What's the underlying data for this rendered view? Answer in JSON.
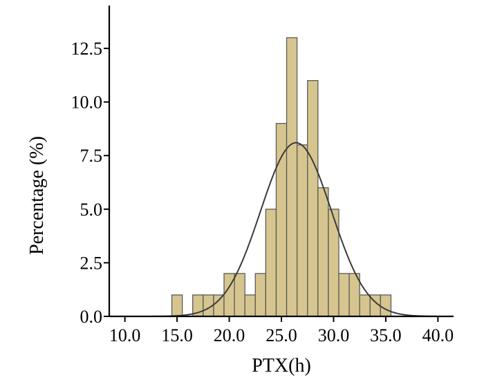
{
  "chart_data": {
    "type": "bar",
    "subtype": "histogram-with-normal-curve",
    "title": "",
    "xlabel": "PTX(h)",
    "ylabel": "Percentage (%)",
    "xlim": [
      8.5,
      41.5
    ],
    "ylim": [
      0,
      14.5
    ],
    "x_ticks": [
      10.0,
      15.0,
      20.0,
      25.0,
      30.0,
      35.0,
      40.0
    ],
    "x_tick_labels": [
      "10.0",
      "15.0",
      "20.0",
      "25.0",
      "30.0",
      "35.0",
      "40.0"
    ],
    "y_ticks": [
      0.0,
      2.5,
      5.0,
      7.5,
      10.0,
      12.5
    ],
    "y_tick_labels": [
      "0.0",
      "2.5",
      "5.0",
      "7.5",
      "10.0",
      "12.5"
    ],
    "bin_width": 1.0,
    "bins": [
      {
        "x0": 14.5,
        "x1": 15.5,
        "value": 1
      },
      {
        "x0": 16.5,
        "x1": 17.5,
        "value": 1
      },
      {
        "x0": 17.5,
        "x1": 18.5,
        "value": 1
      },
      {
        "x0": 18.5,
        "x1": 19.5,
        "value": 1
      },
      {
        "x0": 19.5,
        "x1": 20.5,
        "value": 2
      },
      {
        "x0": 20.5,
        "x1": 21.5,
        "value": 2
      },
      {
        "x0": 21.5,
        "x1": 22.5,
        "value": 1
      },
      {
        "x0": 22.5,
        "x1": 23.5,
        "value": 2
      },
      {
        "x0": 23.5,
        "x1": 24.5,
        "value": 5
      },
      {
        "x0": 24.5,
        "x1": 25.5,
        "value": 9
      },
      {
        "x0": 25.5,
        "x1": 26.5,
        "value": 13
      },
      {
        "x0": 26.5,
        "x1": 27.5,
        "value": 8
      },
      {
        "x0": 27.5,
        "x1": 28.5,
        "value": 11
      },
      {
        "x0": 28.5,
        "x1": 29.5,
        "value": 6
      },
      {
        "x0": 29.5,
        "x1": 30.5,
        "value": 5
      },
      {
        "x0": 30.5,
        "x1": 31.5,
        "value": 2
      },
      {
        "x0": 31.5,
        "x1": 32.5,
        "value": 2
      },
      {
        "x0": 32.5,
        "x1": 33.5,
        "value": 1
      },
      {
        "x0": 33.5,
        "x1": 34.5,
        "value": 1
      },
      {
        "x0": 34.5,
        "x1": 35.5,
        "value": 1
      }
    ],
    "normal_curve": {
      "mean": 26.4,
      "sd": 3.4,
      "peak": 8.1
    },
    "grid": false,
    "colors": {
      "bar_fill": "#d6c58e",
      "bar_stroke": "#5a5a5a",
      "curve": "#3a3a3a",
      "axis": "#000000"
    }
  }
}
